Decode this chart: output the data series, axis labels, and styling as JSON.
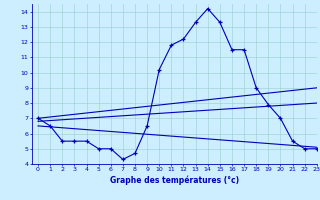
{
  "xlabel": "Graphe des températures (°c)",
  "xlim": [
    -0.5,
    23
  ],
  "ylim": [
    4,
    14.5
  ],
  "yticks": [
    4,
    5,
    6,
    7,
    8,
    9,
    10,
    11,
    12,
    13,
    14
  ],
  "xticks": [
    0,
    1,
    2,
    3,
    4,
    5,
    6,
    7,
    8,
    9,
    10,
    11,
    12,
    13,
    14,
    15,
    16,
    17,
    18,
    19,
    20,
    21,
    22,
    23
  ],
  "bg_color": "#cceeff",
  "line_color": "#0000bb",
  "grid_color": "#99cccc",
  "curve_actual": {
    "x": [
      0,
      1,
      2,
      3,
      4,
      5,
      6,
      7,
      8,
      9,
      10,
      11,
      12,
      13,
      14,
      15,
      16,
      17,
      18,
      19,
      20,
      21,
      22,
      23
    ],
    "y": [
      7.0,
      6.5,
      5.5,
      5.5,
      5.5,
      5.0,
      5.0,
      4.3,
      4.7,
      6.5,
      10.2,
      11.8,
      12.2,
      13.3,
      14.2,
      13.3,
      11.5,
      11.5,
      9.0,
      7.9,
      7.0,
      5.5,
      5.0,
      5.0
    ]
  },
  "curve_upper": {
    "x": [
      0,
      23
    ],
    "y": [
      7.0,
      9.0
    ]
  },
  "curve_mid": {
    "x": [
      0,
      23
    ],
    "y": [
      6.8,
      8.0
    ]
  },
  "curve_lower": {
    "x": [
      0,
      23
    ],
    "y": [
      6.5,
      5.1
    ]
  }
}
